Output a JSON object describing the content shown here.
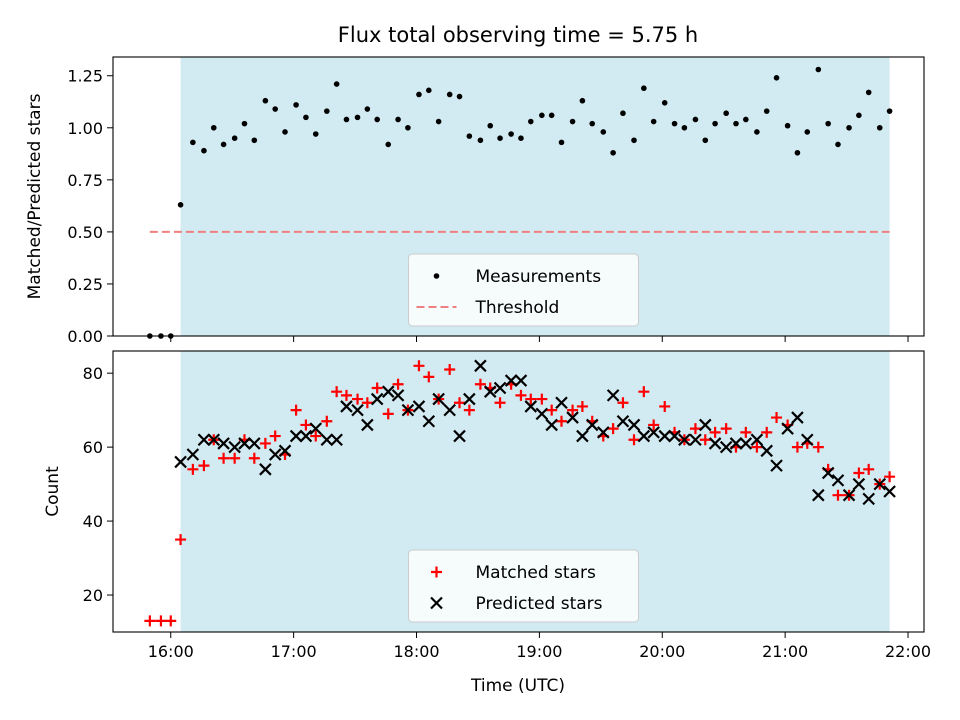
{
  "title": "Flux total observing time = 5.75 h",
  "xlabel": "Time (UTC)",
  "x_tick_labels": [
    "16:00",
    "17:00",
    "18:00",
    "19:00",
    "20:00",
    "21:00",
    "22:00"
  ],
  "colors": {
    "shade": "#add8e6",
    "measurement": "#000000",
    "threshold": "#f08080",
    "matched": "#ff0000",
    "predicted": "#000000"
  },
  "chart_data": [
    {
      "type": "scatter",
      "ylabel": "Matched/Predicted stars",
      "xlim": [
        15.53,
        22.13
      ],
      "ylim": [
        0,
        1.34
      ],
      "y_tick_labels": [
        "0.00",
        "0.25",
        "0.50",
        "0.75",
        "1.00",
        "1.25"
      ],
      "y_ticks": [
        0,
        0.25,
        0.5,
        0.75,
        1.0,
        1.25
      ],
      "shaded_span": [
        16.08,
        21.85
      ],
      "threshold": {
        "name": "Threshold",
        "y": 0.5,
        "x": [
          15.83,
          21.85
        ]
      },
      "legend": [
        "Measurements",
        "Threshold"
      ],
      "legend_position": "lower-center",
      "measurements": {
        "name": "Measurements",
        "x": [
          15.83,
          15.92,
          16.0,
          16.08,
          16.18,
          16.27,
          16.35,
          16.43,
          16.52,
          16.6,
          16.68,
          16.77,
          16.85,
          16.93,
          17.02,
          17.1,
          17.18,
          17.27,
          17.35,
          17.43,
          17.52,
          17.6,
          17.68,
          17.77,
          17.85,
          17.93,
          18.02,
          18.1,
          18.18,
          18.27,
          18.35,
          18.43,
          18.52,
          18.6,
          18.68,
          18.77,
          18.85,
          18.93,
          19.02,
          19.1,
          19.18,
          19.27,
          19.35,
          19.43,
          19.52,
          19.6,
          19.68,
          19.77,
          19.85,
          19.93,
          20.02,
          20.1,
          20.18,
          20.27,
          20.35,
          20.43,
          20.52,
          20.6,
          20.68,
          20.77,
          20.85,
          20.93,
          21.02,
          21.1,
          21.18,
          21.27,
          21.35,
          21.43,
          21.52,
          21.6,
          21.68,
          21.77,
          21.85
        ],
        "y": [
          0.0,
          0.0,
          0.0,
          0.63,
          0.93,
          0.89,
          1.0,
          0.92,
          0.95,
          1.02,
          0.94,
          1.13,
          1.09,
          0.98,
          1.11,
          1.05,
          0.97,
          1.08,
          1.21,
          1.04,
          1.05,
          1.09,
          1.04,
          0.92,
          1.04,
          1.0,
          1.16,
          1.18,
          1.03,
          1.16,
          1.15,
          0.96,
          0.94,
          1.01,
          0.95,
          0.97,
          0.95,
          1.03,
          1.06,
          1.06,
          0.93,
          1.03,
          1.13,
          1.02,
          0.98,
          0.88,
          1.07,
          0.94,
          1.19,
          1.03,
          1.12,
          1.02,
          1.0,
          1.04,
          0.94,
          1.02,
          1.07,
          1.02,
          1.04,
          0.98,
          1.08,
          1.24,
          1.01,
          0.88,
          0.98,
          1.28,
          1.02,
          0.92,
          1.0,
          1.06,
          1.17,
          1.0,
          1.08
        ]
      }
    },
    {
      "type": "scatter",
      "ylabel": "Count",
      "xlim": [
        15.53,
        22.13
      ],
      "ylim": [
        10,
        86
      ],
      "y_tick_labels": [
        "20",
        "40",
        "60",
        "80"
      ],
      "y_ticks": [
        20,
        40,
        60,
        80
      ],
      "shaded_span": [
        16.08,
        21.85
      ],
      "legend": [
        "Matched stars",
        "Predicted stars"
      ],
      "legend_position": "lower-center",
      "series": [
        {
          "name": "Matched stars",
          "marker": "plus",
          "x": [
            15.83,
            15.92,
            16.0,
            16.08,
            16.18,
            16.27,
            16.35,
            16.43,
            16.52,
            16.6,
            16.68,
            16.77,
            16.85,
            16.93,
            17.02,
            17.1,
            17.18,
            17.27,
            17.35,
            17.43,
            17.52,
            17.6,
            17.68,
            17.77,
            17.85,
            17.93,
            18.02,
            18.1,
            18.18,
            18.27,
            18.35,
            18.43,
            18.52,
            18.6,
            18.68,
            18.77,
            18.85,
            18.93,
            19.02,
            19.1,
            19.18,
            19.27,
            19.35,
            19.43,
            19.52,
            19.6,
            19.68,
            19.77,
            19.85,
            19.93,
            20.02,
            20.1,
            20.18,
            20.27,
            20.35,
            20.43,
            20.52,
            20.6,
            20.68,
            20.77,
            20.85,
            20.93,
            21.02,
            21.1,
            21.18,
            21.27,
            21.35,
            21.43,
            21.52,
            21.6,
            21.68,
            21.77,
            21.85
          ],
          "y": [
            13,
            13,
            13,
            35,
            54,
            55,
            62,
            57,
            57,
            62,
            57,
            61,
            63,
            58,
            70,
            66,
            63,
            67,
            75,
            74,
            73,
            72,
            76,
            69,
            77,
            70,
            82,
            79,
            73,
            81,
            72,
            70,
            77,
            76,
            72,
            77,
            74,
            73,
            73,
            70,
            67,
            70,
            71,
            67,
            63,
            65,
            72,
            62,
            75,
            66,
            71,
            64,
            62,
            65,
            62,
            64,
            65,
            60,
            64,
            60,
            64,
            68,
            66,
            60,
            61,
            60,
            54,
            47,
            47,
            53,
            54,
            50,
            52
          ]
        },
        {
          "name": "Predicted stars",
          "marker": "x",
          "x": [
            16.08,
            16.18,
            16.27,
            16.35,
            16.43,
            16.52,
            16.6,
            16.68,
            16.77,
            16.85,
            16.93,
            17.02,
            17.1,
            17.18,
            17.27,
            17.35,
            17.43,
            17.52,
            17.6,
            17.68,
            17.77,
            17.85,
            17.93,
            18.02,
            18.1,
            18.18,
            18.27,
            18.35,
            18.43,
            18.52,
            18.6,
            18.68,
            18.77,
            18.85,
            18.93,
            19.02,
            19.1,
            19.18,
            19.27,
            19.35,
            19.43,
            19.52,
            19.6,
            19.68,
            19.77,
            19.85,
            19.93,
            20.02,
            20.1,
            20.18,
            20.27,
            20.35,
            20.43,
            20.52,
            20.6,
            20.68,
            20.77,
            20.85,
            20.93,
            21.02,
            21.1,
            21.18,
            21.27,
            21.35,
            21.43,
            21.52,
            21.6,
            21.68,
            21.77,
            21.85
          ],
          "y": [
            56,
            58,
            62,
            62,
            61,
            60,
            61,
            61,
            54,
            58,
            59,
            63,
            63,
            65,
            62,
            62,
            71,
            70,
            66,
            73,
            75,
            74,
            70,
            71,
            67,
            73,
            70,
            63,
            73,
            82,
            75,
            76,
            78,
            78,
            71,
            69,
            66,
            72,
            68,
            63,
            66,
            64,
            74,
            67,
            66,
            63,
            64,
            63,
            63,
            62,
            62,
            66,
            61,
            60,
            61,
            61,
            62,
            59,
            55,
            65,
            68,
            62,
            47,
            53,
            51,
            47,
            50,
            46,
            50,
            48
          ]
        }
      ]
    }
  ]
}
